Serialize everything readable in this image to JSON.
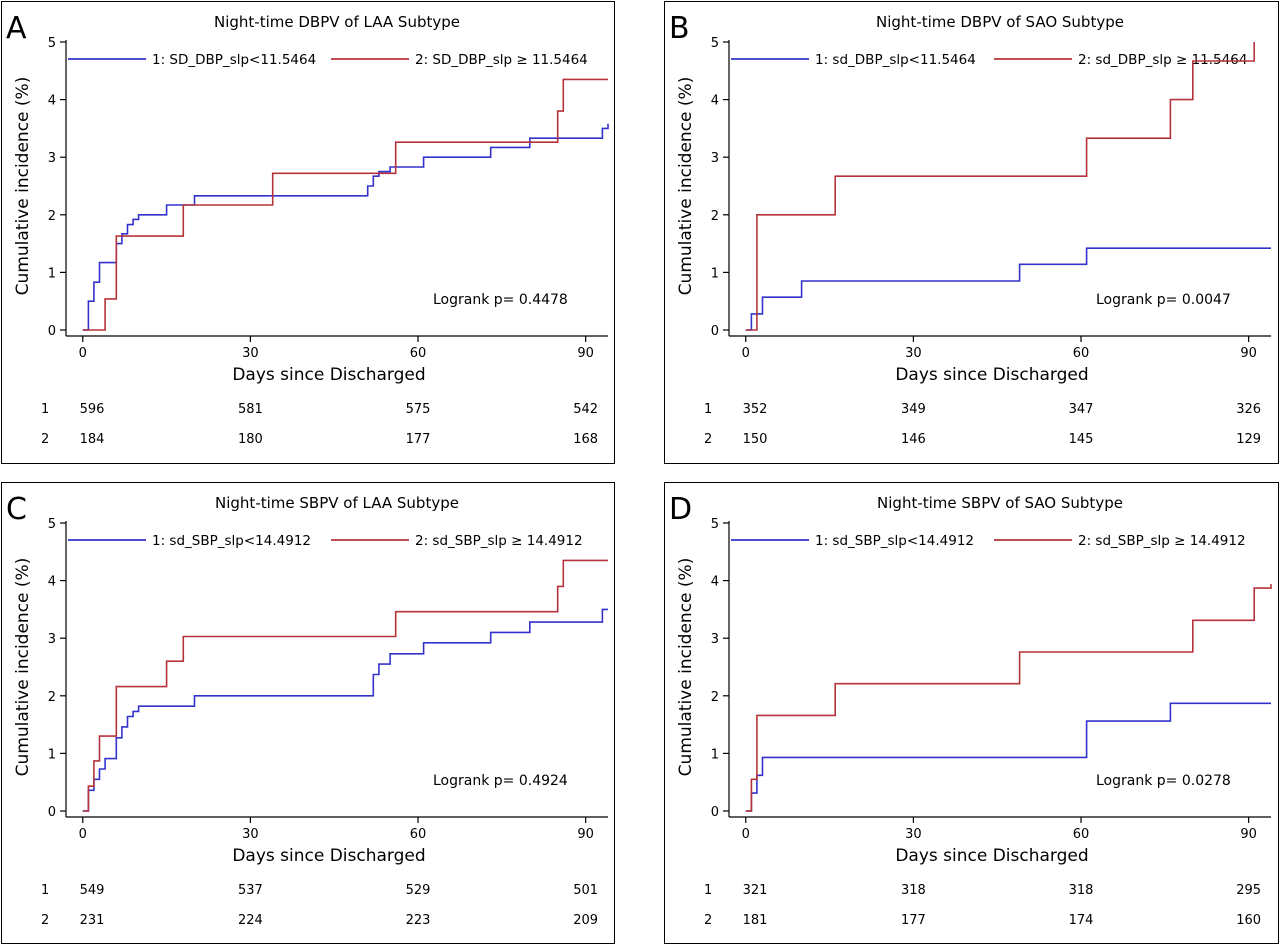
{
  "colors": {
    "group1": "#3333cc",
    "group2": "#b5333a",
    "axis": "#000000"
  },
  "chart_data": [
    {
      "type": "line",
      "panel_letter": "A",
      "title": "Night-time DBPV of LAA Subtype",
      "xlabel": "Days since Discharged",
      "ylabel": "Cumulative incidence (%)",
      "xlim": [
        -3,
        94
      ],
      "ylim": [
        0,
        5
      ],
      "xticks": [
        0,
        30,
        60,
        90
      ],
      "yticks": [
        0,
        1,
        2,
        3,
        4,
        5
      ],
      "grid": false,
      "legend": "top",
      "annotation": "Logrank p= 0.4478",
      "series": [
        {
          "name": "1: SD_DBP_slp<11.5464",
          "risk_label": "1",
          "x": [
            0,
            1,
            2,
            3,
            6,
            7,
            8,
            9,
            10,
            15,
            20,
            51,
            52,
            53,
            55,
            61,
            73,
            80,
            93,
            94
          ],
          "y": [
            0,
            0.5,
            0.83,
            1.17,
            1.5,
            1.67,
            1.83,
            1.92,
            2.0,
            2.17,
            2.33,
            2.5,
            2.67,
            2.75,
            2.83,
            3.0,
            3.17,
            3.33,
            3.5,
            3.58
          ],
          "at_risk": [
            596,
            581,
            575,
            542
          ]
        },
        {
          "name": "2: SD_DBP_slp ≥ 11.5464",
          "risk_label": "2",
          "x": [
            0,
            4,
            6,
            18,
            34,
            56,
            85,
            86,
            94
          ],
          "y": [
            0,
            0.54,
            1.63,
            2.17,
            2.72,
            3.26,
            3.8,
            4.35,
            4.35
          ],
          "at_risk": [
            184,
            180,
            177,
            168
          ]
        }
      ]
    },
    {
      "type": "line",
      "panel_letter": "B",
      "title": "Night-time DBPV of SAO Subtype",
      "xlabel": "Days since Discharged",
      "ylabel": "Cumulative incidence (%)",
      "xlim": [
        -3,
        94
      ],
      "ylim": [
        0,
        5
      ],
      "xticks": [
        0,
        30,
        60,
        90
      ],
      "yticks": [
        0,
        1,
        2,
        3,
        4,
        5
      ],
      "grid": false,
      "legend": "top",
      "annotation": "Logrank p= 0.0047",
      "series": [
        {
          "name": "1: sd_DBP_slp<11.5464",
          "risk_label": "1",
          "x": [
            0,
            1,
            3,
            10,
            49,
            61,
            94
          ],
          "y": [
            0,
            0.28,
            0.57,
            0.85,
            1.14,
            1.42,
            1.42
          ],
          "at_risk": [
            352,
            349,
            347,
            326
          ]
        },
        {
          "name": "2: sd_DBP_slp ≥ 11.5464",
          "risk_label": "2",
          "x": [
            0,
            2,
            16,
            61,
            76,
            80,
            91
          ],
          "y": [
            0,
            2.0,
            2.67,
            3.33,
            4.0,
            4.67,
            5.0
          ],
          "at_risk": [
            150,
            146,
            145,
            129
          ]
        }
      ]
    },
    {
      "type": "line",
      "panel_letter": "C",
      "title": "Night-time SBPV of LAA Subtype",
      "xlabel": "Days since Discharged",
      "ylabel": "Cumulative incidence (%)",
      "xlim": [
        -3,
        94
      ],
      "ylim": [
        0,
        5
      ],
      "xticks": [
        0,
        30,
        60,
        90
      ],
      "yticks": [
        0,
        1,
        2,
        3,
        4,
        5
      ],
      "grid": false,
      "legend": "top",
      "annotation": "Logrank p= 0.4924",
      "series": [
        {
          "name": "1: sd_SBP_slp<14.4912",
          "risk_label": "1",
          "x": [
            0,
            1,
            2,
            3,
            4,
            6,
            7,
            8,
            9,
            10,
            20,
            52,
            53,
            55,
            61,
            73,
            80,
            93,
            94
          ],
          "y": [
            0,
            0.36,
            0.55,
            0.73,
            0.91,
            1.27,
            1.46,
            1.64,
            1.73,
            1.82,
            2.0,
            2.37,
            2.55,
            2.73,
            2.92,
            3.1,
            3.28,
            3.5,
            3.5
          ],
          "at_risk": [
            549,
            537,
            529,
            501
          ]
        },
        {
          "name": "2: sd_SBP_slp ≥ 14.4912",
          "risk_label": "2",
          "x": [
            0,
            1,
            2,
            3,
            6,
            15,
            18,
            56,
            85,
            86,
            94
          ],
          "y": [
            0,
            0.43,
            0.87,
            1.3,
            2.16,
            2.6,
            3.03,
            3.46,
            3.9,
            4.35,
            4.35
          ],
          "at_risk": [
            231,
            224,
            223,
            209
          ]
        }
      ]
    },
    {
      "type": "line",
      "panel_letter": "D",
      "title": "Night-time SBPV of SAO Subtype",
      "xlabel": "Days since Discharged",
      "ylabel": "Cumulative incidence (%)",
      "xlim": [
        -3,
        94
      ],
      "ylim": [
        0,
        5
      ],
      "xticks": [
        0,
        30,
        60,
        90
      ],
      "yticks": [
        0,
        1,
        2,
        3,
        4,
        5
      ],
      "grid": false,
      "legend": "top",
      "annotation": "Logrank p= 0.0278",
      "series": [
        {
          "name": "1: sd_SBP_slp<14.4912",
          "risk_label": "1",
          "x": [
            0,
            1,
            2,
            3,
            10,
            61,
            76,
            94
          ],
          "y": [
            0,
            0.31,
            0.62,
            0.93,
            0.93,
            1.56,
            1.87,
            1.87
          ],
          "at_risk": [
            321,
            318,
            318,
            295
          ]
        },
        {
          "name": "2: sd_SBP_slp ≥ 14.4912",
          "risk_label": "2",
          "x": [
            0,
            1,
            2,
            16,
            49,
            80,
            91,
            94
          ],
          "y": [
            0,
            0.55,
            1.66,
            2.21,
            2.76,
            3.31,
            3.87,
            3.94
          ],
          "at_risk": [
            181,
            177,
            174,
            160
          ]
        }
      ]
    }
  ]
}
